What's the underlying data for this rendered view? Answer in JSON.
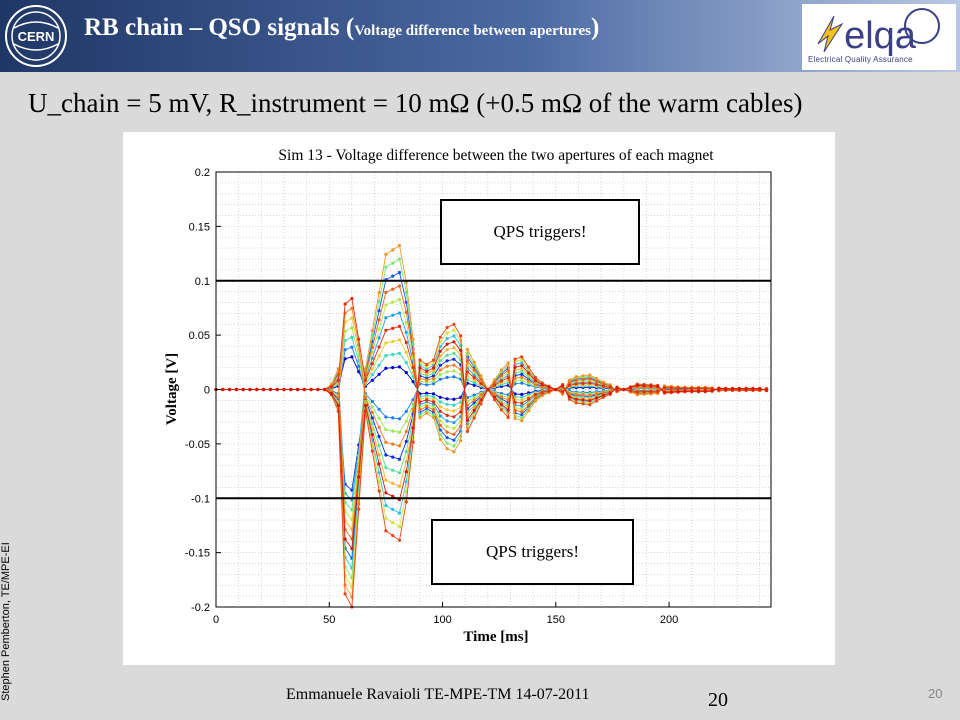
{
  "slide": {
    "title": "RB chain – QSO signals (",
    "title_sub": "Voltage difference between apertures",
    "title_close": ")",
    "subtitle": "U_chain = 5 mV, R_instrument = 10 mΩ (+0.5 mΩ of the warm cables)",
    "side_note": "Stephen Pemberton, TE/MPE-EI",
    "footer": "Emmanuele Ravaioli    TE-MPE-TM    14-07-2011",
    "footer_page": "20",
    "corner_page": "20",
    "cern_logo_text": "CERN",
    "elqa_logo_text": "elqa",
    "elqa_caption": "Electrical  Quality  Assurance",
    "callout_top": "QPS triggers!",
    "callout_bottom": "QPS triggers!"
  },
  "chart_data": {
    "type": "line",
    "title": "Sim 13 - Voltage difference between the two apertures of each magnet",
    "xlabel": "Time [ms]",
    "ylabel": "Voltage [V]",
    "xlim": [
      0,
      245
    ],
    "ylim": [
      -0.2,
      0.2
    ],
    "xticks": [
      0,
      50,
      100,
      150,
      200
    ],
    "yticks": [
      0.2,
      0.15,
      0.1,
      0.05,
      0,
      -0.05,
      -0.1,
      -0.15,
      -0.2
    ],
    "grid": true,
    "threshold_lines": [
      0.1,
      -0.1
    ],
    "series_count": 20,
    "series_colors": [
      "#0000c8",
      "#0a2ee0",
      "#1058f0",
      "#1a7cf5",
      "#22a0f5",
      "#2cc0e8",
      "#3ad6c0",
      "#55e098",
      "#78e874",
      "#9aea5a",
      "#bce84a",
      "#d8e03e",
      "#eccb34",
      "#f5b22c",
      "#f79626",
      "#f57a20",
      "#f0601a",
      "#ea4616",
      "#e02e12",
      "#d41a0e"
    ],
    "envelope": {
      "x": [
        0,
        50,
        54,
        55,
        60,
        66,
        75,
        82,
        88,
        95,
        100,
        105,
        112,
        120,
        128,
        135,
        142,
        150,
        158,
        165,
        172,
        180,
        186,
        194,
        200,
        208,
        216,
        224,
        232,
        240,
        245
      ],
      "amplitude": [
        0,
        0,
        0.02,
        0.18,
        0.2,
        0.02,
        0.13,
        0.14,
        0.03,
        0.02,
        0.055,
        0.06,
        0.035,
        0,
        0.025,
        0.03,
        0.008,
        0,
        0.012,
        0.014,
        0.006,
        0,
        0.005,
        0.004,
        0.003,
        0.002,
        0.002,
        0.001,
        0.001,
        0.001,
        0.001
      ]
    }
  }
}
